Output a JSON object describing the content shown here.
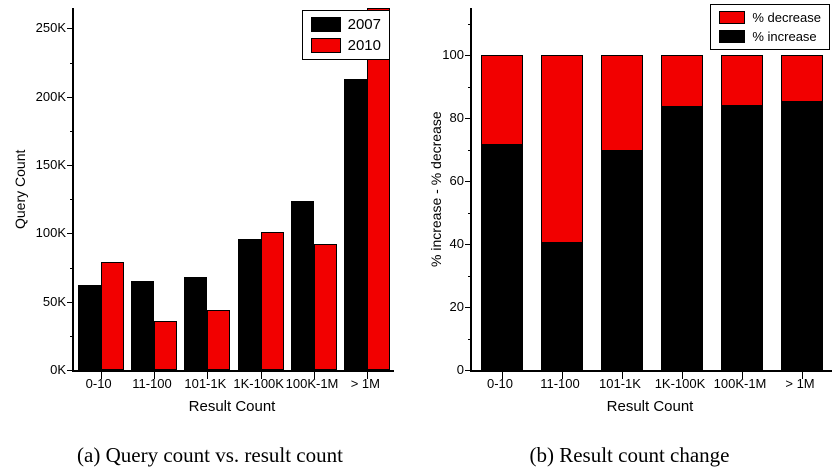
{
  "chart_data": [
    {
      "id": "a",
      "type": "bar",
      "subtype": "grouped",
      "caption": "(a) Query count vs. result count",
      "xlabel": "Result Count",
      "ylabel": "Query Count",
      "categories": [
        "0-10",
        "11-100",
        "101-1K",
        "1K-100K",
        "100K-1M",
        "> 1M"
      ],
      "yticks": [
        [
          0,
          "0K"
        ],
        [
          50,
          "50K"
        ],
        [
          100,
          "100K"
        ],
        [
          150,
          "150K"
        ],
        [
          200,
          "200K"
        ],
        [
          250,
          "250K"
        ]
      ],
      "ylim": [
        0,
        265
      ],
      "yminor": 25,
      "grid": false,
      "series": [
        {
          "name": "2007",
          "color": "#000000",
          "values": [
            62,
            65,
            68,
            96,
            124,
            213
          ]
        },
        {
          "name": "2010",
          "color": "#f20000",
          "values": [
            79,
            36,
            44,
            101,
            92,
            265
          ]
        }
      ],
      "legend": [
        {
          "label": "2007",
          "color": "#000000"
        },
        {
          "label": "2010",
          "color": "#f20000"
        }
      ],
      "legend_position": "top-right"
    },
    {
      "id": "b",
      "type": "bar",
      "subtype": "stacked",
      "caption": "(b) Result count change",
      "xlabel": "Result Count",
      "ylabel": "% increase - % decrease",
      "categories": [
        "0-10",
        "11-100",
        "101-1K",
        "1K-100K",
        "100K-1M",
        "> 1M"
      ],
      "yticks": [
        [
          0,
          "0"
        ],
        [
          20,
          "20"
        ],
        [
          40,
          "40"
        ],
        [
          60,
          "60"
        ],
        [
          80,
          "80"
        ],
        [
          100,
          "100"
        ]
      ],
      "ylim": [
        0,
        115
      ],
      "yminor": 10,
      "grid": false,
      "series": [
        {
          "name": "% increase",
          "color": "#000000",
          "values": [
            71.5,
            40.5,
            69.5,
            83.5,
            84,
            85
          ]
        },
        {
          "name": "% decrease",
          "color": "#f20000",
          "values": [
            28.5,
            59.5,
            30.5,
            16.5,
            16,
            15
          ]
        }
      ],
      "legend": [
        {
          "label": "% decrease",
          "color": "#f20000"
        },
        {
          "label": "% increase",
          "color": "#000000"
        }
      ],
      "legend_position": "top-right"
    }
  ]
}
